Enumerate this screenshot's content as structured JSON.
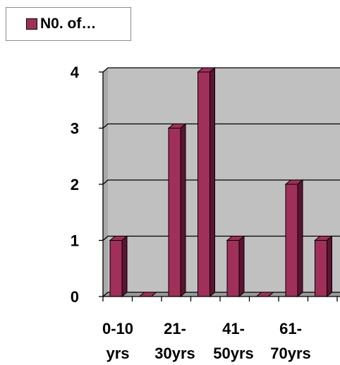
{
  "legend": {
    "label": "N0. of…"
  },
  "colors": {
    "bar": "#a0305a",
    "bar_dark": "#5c1430",
    "wall": "#c0c0c0",
    "floor": "#9a9a9a"
  },
  "chart_data": {
    "type": "bar",
    "ylim": [
      0,
      4
    ],
    "yticks": [
      0,
      1,
      2,
      3,
      4
    ],
    "grid": true,
    "legend_position": "top-left",
    "values": [
      1,
      0,
      3,
      4,
      1,
      0,
      2,
      1
    ],
    "xtick_labels": [
      [
        "0-10",
        "yrs"
      ],
      [
        "21-",
        "30yrs"
      ],
      [
        "41-",
        "50yrs"
      ],
      [
        "61-",
        "70yrs"
      ]
    ],
    "series": [
      {
        "name": "N0. of…",
        "values": [
          1,
          0,
          3,
          4,
          1,
          0,
          2,
          1
        ]
      }
    ]
  }
}
